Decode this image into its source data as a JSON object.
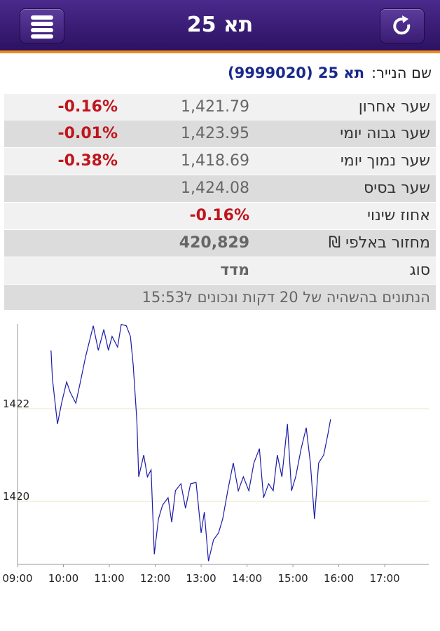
{
  "header": {
    "title": "תא 25"
  },
  "security": {
    "label": "שם הנייר:",
    "value": "תא 25 (9999020)"
  },
  "table": {
    "rows": [
      [
        "שער אחרון",
        "1,421.79",
        "-0.16%"
      ],
      [
        "שער גבוה יומי",
        "1,423.95",
        "-0.01%"
      ],
      [
        "שער נמוך יומי",
        "1,418.69",
        "-0.38%"
      ],
      [
        "שער בסיס",
        "1,424.08"
      ],
      [
        "אחוז שינוי",
        "-0.16%"
      ],
      [
        "מחזור באלפי ₪",
        "420,829"
      ],
      [
        "סוג",
        "מדד"
      ]
    ]
  },
  "note": "הנתונים בהשהיה של 20 דקות ונכונים ל15:53",
  "chart_data": {
    "type": "line",
    "x": [
      9.73,
      9.76,
      9.87,
      9.96,
      10.07,
      10.15,
      10.27,
      10.37,
      10.48,
      10.65,
      10.76,
      10.88,
      10.98,
      11.06,
      11.18,
      11.26,
      11.37,
      11.46,
      11.52,
      11.6,
      11.64,
      11.75,
      11.83,
      11.91,
      11.98,
      12.07,
      12.16,
      12.28,
      12.36,
      12.44,
      12.56,
      12.66,
      12.77,
      12.89,
      13.0,
      13.07,
      13.16,
      13.27,
      13.38,
      13.47,
      13.58,
      13.7,
      13.81,
      13.92,
      14.04,
      14.15,
      14.27,
      14.36,
      14.47,
      14.57,
      14.66,
      14.76,
      14.88,
      14.97,
      15.06,
      15.18,
      15.29,
      15.38,
      15.47,
      15.56,
      15.67,
      15.76,
      15.82
    ],
    "series": [
      {
        "color": "#1c1ca8",
        "values": [
          1423.26,
          1422.65,
          1421.67,
          1422.12,
          1422.58,
          1422.35,
          1422.12,
          1422.58,
          1423.11,
          1423.79,
          1423.26,
          1423.71,
          1423.26,
          1423.56,
          1423.33,
          1423.82,
          1423.79,
          1423.56,
          1422.95,
          1421.74,
          1420.53,
          1421.0,
          1420.53,
          1420.68,
          1418.86,
          1419.62,
          1419.92,
          1420.08,
          1419.55,
          1420.23,
          1420.38,
          1419.85,
          1420.38,
          1420.41,
          1419.32,
          1419.77,
          1418.71,
          1419.17,
          1419.32,
          1419.62,
          1420.23,
          1420.83,
          1420.23,
          1420.53,
          1420.23,
          1420.83,
          1421.14,
          1420.08,
          1420.38,
          1420.23,
          1421.0,
          1420.53,
          1421.67,
          1420.23,
          1420.53,
          1421.14,
          1421.59,
          1420.83,
          1419.62,
          1420.83,
          1421.0,
          1421.44,
          1421.77
        ]
      }
    ],
    "xlim": [
      9,
      17.96
    ],
    "xticks": [
      {
        "value": 9,
        "label": "09:00"
      },
      {
        "value": 10,
        "label": "10:00"
      },
      {
        "value": 11,
        "label": "11:00"
      },
      {
        "value": 12,
        "label": "12:00"
      },
      {
        "value": 13,
        "label": "13:00"
      },
      {
        "value": 14,
        "label": "14:00"
      },
      {
        "value": 15,
        "label": "15:00"
      },
      {
        "value": 16,
        "label": "16:00"
      },
      {
        "value": 17,
        "label": "17:00"
      }
    ],
    "ylim": [
      1418.64,
      1423.83
    ],
    "yticks": [
      1420,
      1422
    ],
    "grid": true
  }
}
